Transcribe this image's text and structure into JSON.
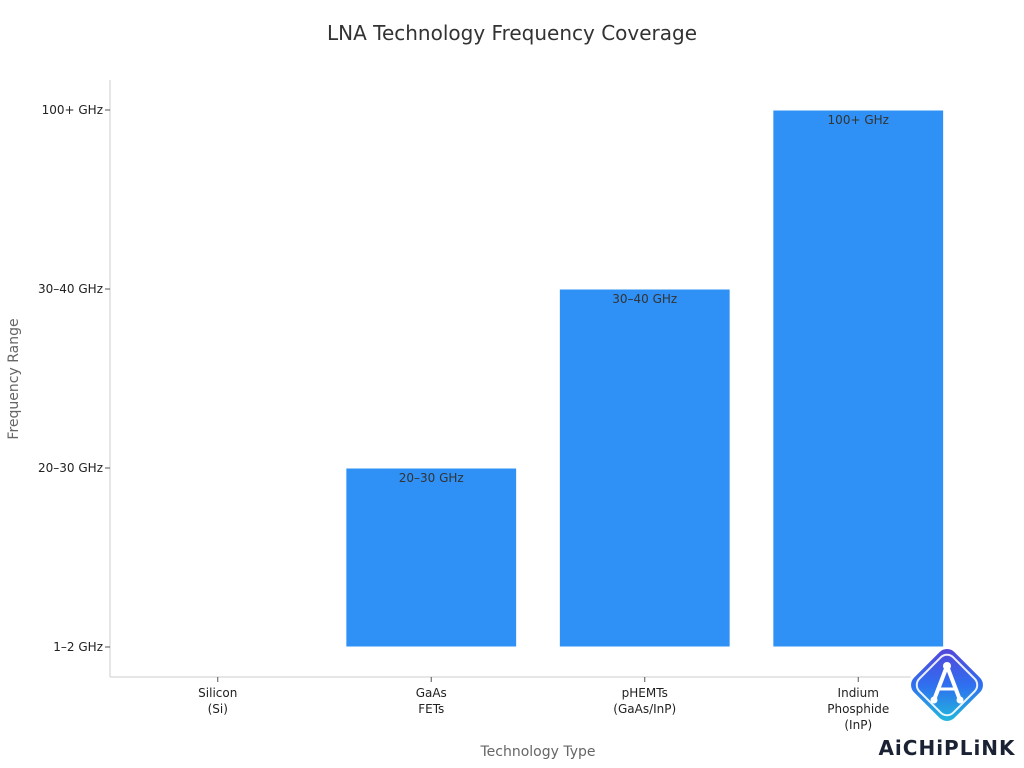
{
  "chart_data": {
    "type": "bar",
    "title": "LNA Technology Frequency Coverage",
    "xlabel": "Technology Type",
    "ylabel": "Frequency Range",
    "categories": [
      [
        "Silicon",
        "(Si)"
      ],
      [
        "GaAs",
        "FETs"
      ],
      [
        "pHEMTs",
        "(GaAs/InP)"
      ],
      [
        "Indium",
        "Phosphide",
        "(InP)"
      ]
    ],
    "y_ticks": [
      "1–2 GHz",
      "20–30 GHz",
      "30–40 GHz",
      "100+ GHz"
    ],
    "values": [
      0,
      1,
      2,
      3
    ],
    "data_labels": [
      "",
      "20–30 GHz",
      "30–40 GHz",
      "100+ GHz"
    ],
    "ylim": [
      0,
      3
    ],
    "bar_color": "#2f91f5",
    "grid": false,
    "legend": "none"
  },
  "watermark": {
    "text": "AiCHiPLiNK",
    "icon": "aichiplink-logo-icon"
  }
}
